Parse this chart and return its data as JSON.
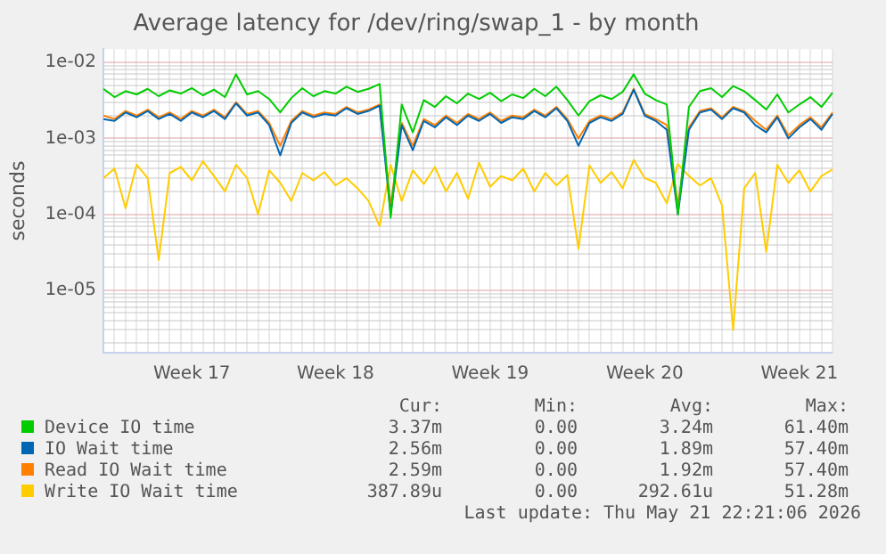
{
  "chart_data": {
    "type": "line",
    "title": "Average latency for /dev/ring/swap_1 - by month",
    "ylabel": "seconds",
    "log": "y",
    "grid": true,
    "legend": "bottom",
    "marker": "none",
    "line_style": "solid",
    "ylim": [
      1.5e-06,
      0.015
    ],
    "yticks": [
      {
        "value": 2e-06,
        "label": null
      },
      {
        "value": 3e-06,
        "label": null
      },
      {
        "value": 4e-06,
        "label": null
      },
      {
        "value": 5e-06,
        "label": null
      },
      {
        "value": 6e-06,
        "label": null
      },
      {
        "value": 7e-06,
        "label": null
      },
      {
        "value": 8e-06,
        "label": null
      },
      {
        "value": 9e-06,
        "label": null
      },
      {
        "value": 1e-05,
        "label": "1e-05"
      },
      {
        "value": 2e-05,
        "label": null
      },
      {
        "value": 3e-05,
        "label": null
      },
      {
        "value": 4e-05,
        "label": null
      },
      {
        "value": 5e-05,
        "label": null
      },
      {
        "value": 6e-05,
        "label": null
      },
      {
        "value": 7e-05,
        "label": null
      },
      {
        "value": 8e-05,
        "label": null
      },
      {
        "value": 9e-05,
        "label": null
      },
      {
        "value": 0.0001,
        "label": "1e-04"
      },
      {
        "value": 0.0002,
        "label": null
      },
      {
        "value": 0.0003,
        "label": null
      },
      {
        "value": 0.0004,
        "label": null
      },
      {
        "value": 0.0005,
        "label": null
      },
      {
        "value": 0.0006,
        "label": null
      },
      {
        "value": 0.0007,
        "label": null
      },
      {
        "value": 0.0008,
        "label": null
      },
      {
        "value": 0.0009,
        "label": null
      },
      {
        "value": 0.001,
        "label": "1e-03"
      },
      {
        "value": 0.002,
        "label": null
      },
      {
        "value": 0.003,
        "label": null
      },
      {
        "value": 0.004,
        "label": null
      },
      {
        "value": 0.005,
        "label": null
      },
      {
        "value": 0.006,
        "label": null
      },
      {
        "value": 0.007,
        "label": null
      },
      {
        "value": 0.008,
        "label": null
      },
      {
        "value": 0.009,
        "label": null
      },
      {
        "value": 0.01,
        "label": "1e-02"
      }
    ],
    "categories": [
      null,
      null,
      null,
      null,
      null,
      null,
      null,
      null,
      "Week 17",
      null,
      null,
      null,
      null,
      null,
      null,
      null,
      null,
      null,
      null,
      null,
      null,
      "Week 18",
      null,
      null,
      null,
      null,
      null,
      null,
      null,
      null,
      null,
      null,
      null,
      null,
      null,
      "Week 19",
      null,
      null,
      null,
      null,
      null,
      null,
      null,
      null,
      null,
      null,
      null,
      null,
      null,
      "Week 20",
      null,
      null,
      null,
      null,
      null,
      null,
      null,
      null,
      null,
      null,
      null,
      null,
      null,
      "Week 21",
      null,
      null,
      null
    ],
    "series": [
      {
        "name": "Device IO time",
        "color": "#00cc00",
        "values": [
          0.0045,
          0.0035,
          0.0042,
          0.0038,
          0.0045,
          0.0036,
          0.0043,
          0.0039,
          0.0046,
          0.0037,
          0.0044,
          0.0035,
          0.007,
          0.0038,
          0.0042,
          0.0033,
          0.0022,
          0.0034,
          0.0046,
          0.0036,
          0.0042,
          0.0039,
          0.0048,
          0.0041,
          0.0045,
          0.0052,
          9e-05,
          0.0028,
          0.0012,
          0.0032,
          0.0026,
          0.0036,
          0.0029,
          0.0039,
          0.0033,
          0.004,
          0.0031,
          0.0038,
          0.0034,
          0.0045,
          0.0036,
          0.0048,
          0.0032,
          0.002,
          0.0031,
          0.0037,
          0.0033,
          0.0041,
          0.007,
          0.0039,
          0.0032,
          0.0028,
          0.0001,
          0.0026,
          0.0042,
          0.0046,
          0.0035,
          0.0049,
          0.0042,
          0.0032,
          0.0024,
          0.0038,
          0.0022,
          0.0028,
          0.0035,
          0.0026,
          0.004
        ]
      },
      {
        "name": "IO Wait time",
        "color": "#0066b3",
        "values": [
          0.0018,
          0.0017,
          0.0022,
          0.0019,
          0.0023,
          0.0018,
          0.0021,
          0.0017,
          0.0022,
          0.0019,
          0.0023,
          0.0018,
          0.0029,
          0.002,
          0.0022,
          0.0015,
          0.0006,
          0.0016,
          0.0022,
          0.0019,
          0.0021,
          0.002,
          0.0025,
          0.0021,
          0.0023,
          0.0027,
          0.0001,
          0.0015,
          0.0007,
          0.0017,
          0.0014,
          0.0019,
          0.0015,
          0.002,
          0.0017,
          0.0021,
          0.0016,
          0.0019,
          0.0018,
          0.0023,
          0.0019,
          0.0025,
          0.0017,
          0.0008,
          0.0016,
          0.0019,
          0.0017,
          0.0021,
          0.0044,
          0.002,
          0.0017,
          0.0013,
          0.0001,
          0.0013,
          0.0022,
          0.0024,
          0.0018,
          0.0025,
          0.0022,
          0.0015,
          0.0012,
          0.0019,
          0.001,
          0.0014,
          0.0018,
          0.0013,
          0.0021
        ]
      },
      {
        "name": "Read IO Wait time",
        "color": "#ff8000",
        "values": [
          0.002,
          0.0018,
          0.0023,
          0.002,
          0.0024,
          0.0019,
          0.0022,
          0.0018,
          0.0023,
          0.002,
          0.0024,
          0.0019,
          0.003,
          0.0021,
          0.0023,
          0.0016,
          0.0008,
          0.0017,
          0.0023,
          0.002,
          0.0022,
          0.0021,
          0.0026,
          0.0022,
          0.0024,
          0.0028,
          0.00013,
          0.0016,
          0.0008,
          0.0018,
          0.0015,
          0.002,
          0.0016,
          0.0021,
          0.0018,
          0.0022,
          0.0017,
          0.002,
          0.0019,
          0.0024,
          0.002,
          0.0026,
          0.0018,
          0.001,
          0.0017,
          0.002,
          0.0018,
          0.0022,
          0.0045,
          0.0021,
          0.0018,
          0.0015,
          0.00013,
          0.0014,
          0.0023,
          0.0025,
          0.0019,
          0.0026,
          0.0023,
          0.0017,
          0.0013,
          0.002,
          0.0011,
          0.0015,
          0.0019,
          0.0014,
          0.0022
        ]
      },
      {
        "name": "Write IO Wait time",
        "color": "#ffcc00",
        "values": [
          0.0003,
          0.0004,
          0.00012,
          0.00045,
          0.0003,
          2.5e-05,
          0.00035,
          0.00042,
          0.00028,
          0.0005,
          0.00032,
          0.0002,
          0.00045,
          0.0003,
          0.0001,
          0.00038,
          0.00026,
          0.00015,
          0.00035,
          0.00028,
          0.00036,
          0.00024,
          0.0003,
          0.00022,
          0.00015,
          7e-05,
          0.00045,
          0.00015,
          0.00038,
          0.00025,
          0.00042,
          0.0002,
          0.00035,
          0.00016,
          0.00048,
          0.00023,
          0.00032,
          0.00028,
          0.0004,
          0.0002,
          0.00035,
          0.00024,
          0.00033,
          3.5e-05,
          0.00044,
          0.00026,
          0.00036,
          0.00022,
          0.00052,
          0.0003,
          0.00026,
          0.00014,
          0.00046,
          0.00032,
          0.00024,
          0.0003,
          0.00013,
          3e-06,
          0.00022,
          0.00035,
          3.2e-05,
          0.00045,
          0.00026,
          0.00038,
          0.0002,
          0.00032,
          0.00039
        ]
      }
    ],
    "annotations": [
      "Cur:",
      "Min:",
      "Avg:",
      "Max:",
      "3.37m",
      "0.00",
      "3.24m",
      "61.40m",
      "2.56m",
      "0.00",
      "1.89m",
      "57.40m",
      "2.59m",
      "0.00",
      "1.92m",
      "57.40m",
      "387.89u",
      "0.00",
      "292.61u",
      "51.28m",
      "Last update: Thu May 21 22:21:06 2026"
    ]
  }
}
